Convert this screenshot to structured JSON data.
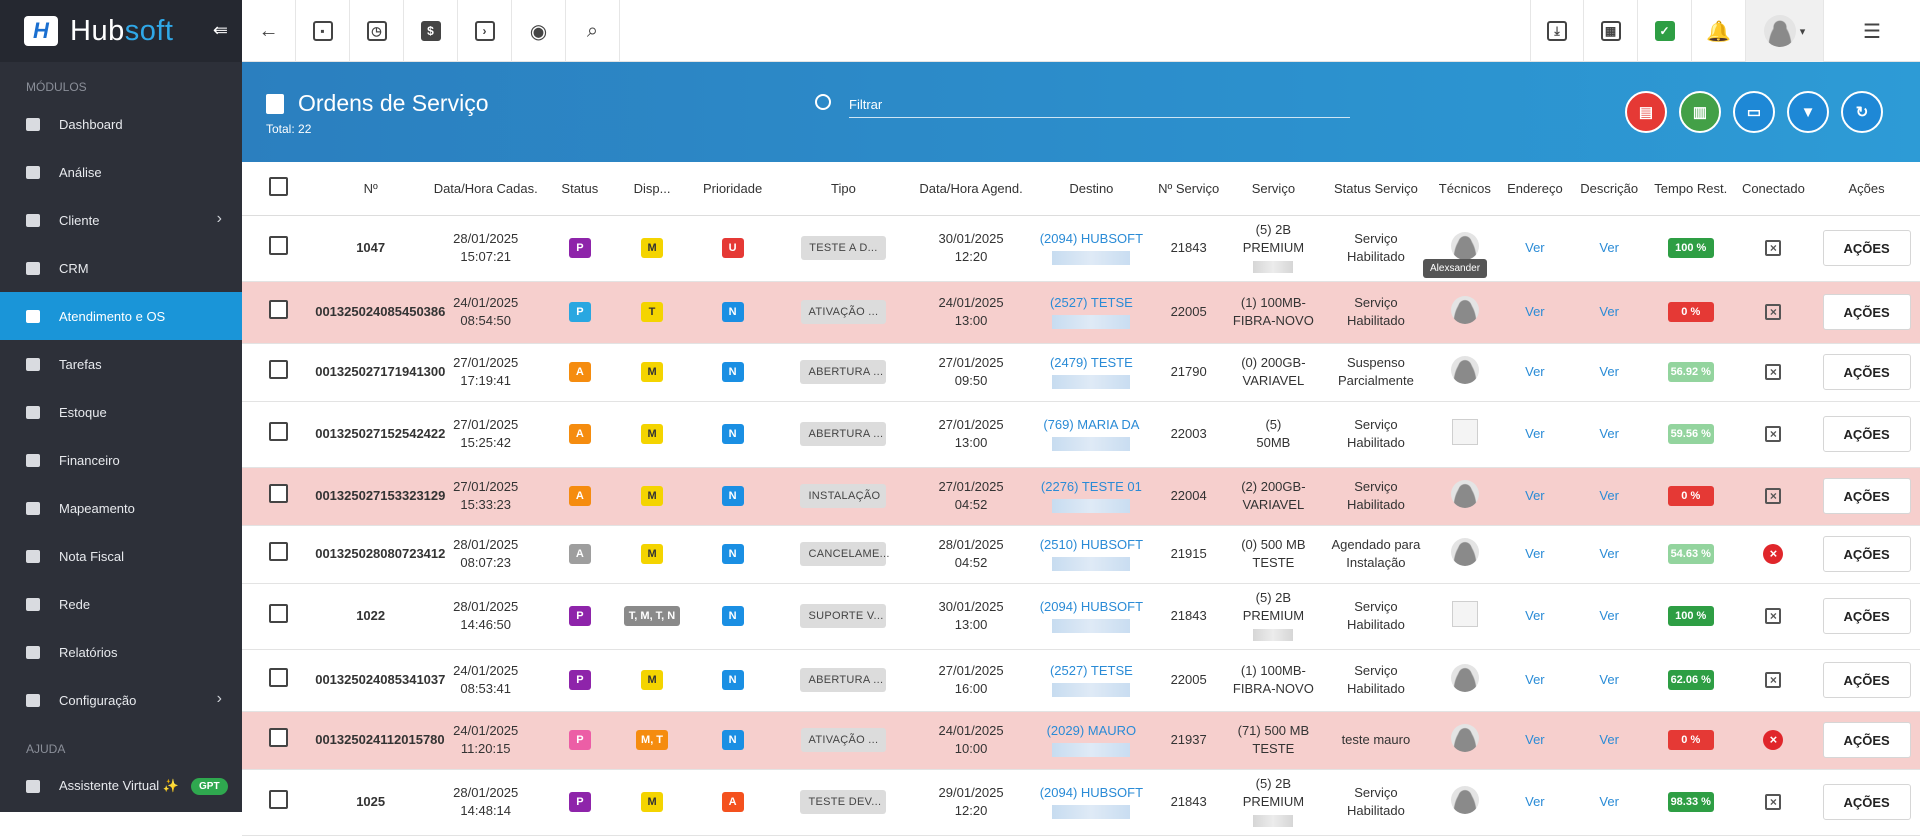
{
  "brand": {
    "name_main": "Hub",
    "name_accent": "soft",
    "logo_letter": "H"
  },
  "sidebar": {
    "section_modules": "MÓDULOS",
    "section_help": "AJUDA",
    "items": [
      {
        "label": "Dashboard",
        "icon": "grid-icon"
      },
      {
        "label": "Análise",
        "icon": "pie-chart-icon"
      },
      {
        "label": "Cliente",
        "icon": "contact-card-icon",
        "chevron": true
      },
      {
        "label": "CRM",
        "icon": "crm-icon"
      },
      {
        "label": "Atendimento e OS",
        "icon": "calendar-clock-icon",
        "active": true
      },
      {
        "label": "Tarefas",
        "icon": "briefcase-icon"
      },
      {
        "label": "Estoque",
        "icon": "box-icon"
      },
      {
        "label": "Financeiro",
        "icon": "money-icon"
      },
      {
        "label": "Mapeamento",
        "icon": "map-pin-icon"
      },
      {
        "label": "Nota Fiscal",
        "icon": "receipt-icon"
      },
      {
        "label": "Rede",
        "icon": "network-icon"
      },
      {
        "label": "Relatórios",
        "icon": "report-icon"
      },
      {
        "label": "Configuração",
        "icon": "gear-icon",
        "chevron": true
      }
    ],
    "assistant": {
      "label": "Assistente Virtual ✨",
      "badge": "GPT"
    }
  },
  "header": {
    "title": "Ordens de Serviço",
    "total": "Total: 22",
    "filter_placeholder": "Filtrar"
  },
  "columns": [
    "Nº",
    "Data/Hora Cadas.",
    "Status",
    "Disp...",
    "Prioridade",
    "Tipo",
    "Data/Hora Agend.",
    "Destino",
    "Nº Serviço",
    "Serviço",
    "Status Serviço",
    "Técnicos",
    "Endereço",
    "Descrição",
    "Tempo Rest.",
    "Conectado",
    "Ações"
  ],
  "tooltip": "Alexsander",
  "row_action": "AÇÕES",
  "ver": "Ver",
  "rows": [
    {
      "num": "1047",
      "date1": "28/01/2025",
      "time1": "15:07:21",
      "status": "P",
      "status_color": "#8e24aa",
      "disp": "M",
      "disp_color": "#f4d400",
      "prio": "U",
      "prio_color": "#e53935",
      "tipo": "TESTE A D...",
      "date2": "30/01/2025",
      "time2": "12:20",
      "dest": "(2094) HUBSOFT",
      "nserv": "21843",
      "serv1": "(5) 2B",
      "serv2": "PREMIUM",
      "serv3blur": true,
      "sserv1": "Serviço",
      "sserv2": "Habilitado",
      "tec": "avatar",
      "tempo": "100 %",
      "tempo_color": "#2e9e44",
      "conn": "off",
      "pink": false
    },
    {
      "num": "001325024085450386",
      "date1": "24/01/2025",
      "time1": "08:54:50",
      "status": "P",
      "status_color": "#29a7e1",
      "disp": "T",
      "disp_color": "#f4d400",
      "prio": "N",
      "prio_color": "#1a8fe3",
      "tipo": "ATIVAÇÃO ...",
      "date2": "24/01/2025",
      "time2": "13:00",
      "dest": "(2527) TETSE",
      "nserv": "22005",
      "serv1": "(1) 100MB-",
      "serv2": "FIBRA-NOVO",
      "sserv1": "Serviço",
      "sserv2": "Habilitado",
      "tec": "avatar",
      "tempo": "0 %",
      "tempo_color": "#e53935",
      "conn": "off",
      "pink": true
    },
    {
      "num": "001325027171941300",
      "date1": "27/01/2025",
      "time1": "17:19:41",
      "status": "A",
      "status_color": "#f58c0f",
      "disp": "M",
      "disp_color": "#f4d400",
      "prio": "N",
      "prio_color": "#1a8fe3",
      "tipo": "ABERTURA ...",
      "date2": "27/01/2025",
      "time2": "09:50",
      "dest": "(2479) TESTE",
      "nserv": "21790",
      "serv1": "(0) 200GB-",
      "serv2": "VARIAVEL",
      "sserv1": "Suspenso",
      "sserv2": "Parcialmente",
      "tec": "avatar",
      "tempo": "56.92 %",
      "tempo_color": "#93d49e",
      "conn": "off",
      "pink": false
    },
    {
      "num": "001325027152542422",
      "date1": "27/01/2025",
      "time1": "15:25:42",
      "status": "A",
      "status_color": "#f58c0f",
      "disp": "M",
      "disp_color": "#f4d400",
      "prio": "N",
      "prio_color": "#1a8fe3",
      "tipo": "ABERTURA ...",
      "date2": "27/01/2025",
      "time2": "13:00",
      "dest": "(769) MARIA DA",
      "nserv": "22003",
      "serv1": "(5)",
      "serv2": "50MB",
      "sserv1": "Serviço",
      "sserv2": "Habilitado",
      "tec": "broken",
      "tempo": "59.56 %",
      "tempo_color": "#93d49e",
      "conn": "off",
      "pink": false
    },
    {
      "num": "001325027153323129",
      "date1": "27/01/2025",
      "time1": "15:33:23",
      "status": "A",
      "status_color": "#f58c0f",
      "disp": "M",
      "disp_color": "#f4d400",
      "prio": "N",
      "prio_color": "#1a8fe3",
      "tipo": "INSTALAÇÃO",
      "date2": "27/01/2025",
      "time2": "04:52",
      "dest": "(2276) TESTE 01",
      "nserv": "22004",
      "serv1": "(2) 200GB-",
      "serv2": "VARIAVEL",
      "sserv1": "Serviço",
      "sserv2": "Habilitado",
      "tec": "avatar",
      "tempo": "0 %",
      "tempo_color": "#e53935",
      "conn": "off",
      "pink": true
    },
    {
      "num": "001325028080723412",
      "date1": "28/01/2025",
      "time1": "08:07:23",
      "status": "A",
      "status_color": "#9e9e9e",
      "disp": "M",
      "disp_color": "#f4d400",
      "prio": "N",
      "prio_color": "#1a8fe3",
      "tipo": "CANCELAME...",
      "date2": "28/01/2025",
      "time2": "04:52",
      "dest": "(2510) HUBSOFT",
      "nserv": "21915",
      "serv1": "(0) 500 MB",
      "serv2": "TESTE",
      "sserv1": "Agendado para",
      "sserv2": "Instalação",
      "tec": "avatar",
      "tempo": "54.63 %",
      "tempo_color": "#93d49e",
      "conn": "x",
      "pink": false
    },
    {
      "num": "1022",
      "date1": "28/01/2025",
      "time1": "14:46:50",
      "status": "P",
      "status_color": "#8e24aa",
      "disp": "T, M, T, N",
      "disp_color": "#8a8a8a",
      "prio": "N",
      "prio_color": "#1a8fe3",
      "tipo": "SUPORTE V...",
      "date2": "30/01/2025",
      "time2": "13:00",
      "dest": "(2094) HUBSOFT",
      "nserv": "21843",
      "serv1": "(5) 2B",
      "serv2": "PREMIUM",
      "serv3blur": true,
      "sserv1": "Serviço",
      "sserv2": "Habilitado",
      "tec": "broken",
      "tempo": "100 %",
      "tempo_color": "#2e9e44",
      "conn": "off",
      "pink": false
    },
    {
      "num": "001325024085341037",
      "date1": "24/01/2025",
      "time1": "08:53:41",
      "status": "P",
      "status_color": "#8e24aa",
      "disp": "M",
      "disp_color": "#f4d400",
      "prio": "N",
      "prio_color": "#1a8fe3",
      "tipo": "ABERTURA ...",
      "date2": "27/01/2025",
      "time2": "16:00",
      "dest": "(2527) TETSE",
      "nserv": "22005",
      "serv1": "(1) 100MB-",
      "serv2": "FIBRA-NOVO",
      "sserv1": "Serviço",
      "sserv2": "Habilitado",
      "tec": "avatar",
      "tempo": "62.06 %",
      "tempo_color": "#2e9e44",
      "conn": "off",
      "pink": false
    },
    {
      "num": "001325024112015780",
      "date1": "24/01/2025",
      "time1": "11:20:15",
      "status": "P",
      "status_color": "#ec5ea6",
      "disp": "M, T",
      "disp_color": "#f58c0f",
      "prio": "N",
      "prio_color": "#1a8fe3",
      "tipo": "ATIVAÇÃO ...",
      "date2": "24/01/2025",
      "time2": "10:00",
      "dest": "(2029) MAURO",
      "nserv": "21937",
      "serv1": "(71) 500 MB",
      "serv2": "TESTE",
      "sserv1": "teste mauro",
      "sserv2": "",
      "tec": "avatar",
      "tempo": "0 %",
      "tempo_color": "#e53935",
      "conn": "x",
      "pink": true
    },
    {
      "num": "1025",
      "date1": "28/01/2025",
      "time1": "14:48:14",
      "status": "P",
      "status_color": "#8e24aa",
      "disp": "M",
      "disp_color": "#f4d400",
      "prio": "A",
      "prio_color": "#f4511e",
      "tipo": "TESTE DEV...",
      "date2": "29/01/2025",
      "time2": "12:20",
      "dest": "(2094) HUBSOFT",
      "nserv": "21843",
      "serv1": "(5) 2B",
      "serv2": "PREMIUM",
      "serv3blur": true,
      "sserv1": "Serviço",
      "sserv2": "Habilitado",
      "tec": "avatar",
      "tempo": "98.33 %",
      "tempo_color": "#2e9e44",
      "conn": "off",
      "pink": false
    }
  ]
}
